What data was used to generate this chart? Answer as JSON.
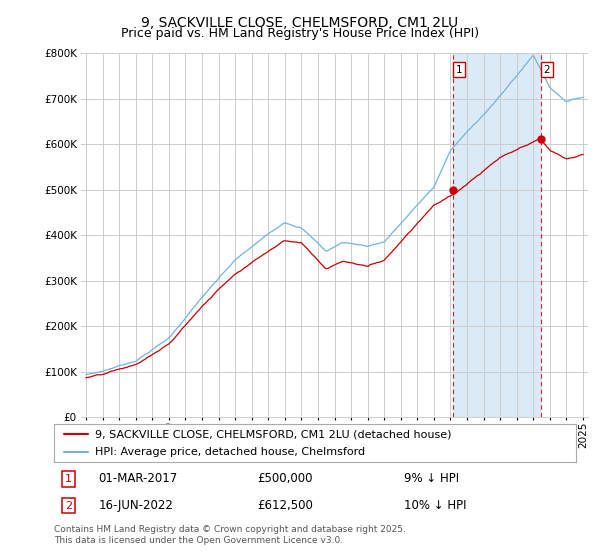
{
  "title": "9, SACKVILLE CLOSE, CHELMSFORD, CM1 2LU",
  "subtitle": "Price paid vs. HM Land Registry's House Price Index (HPI)",
  "legend_label_red": "9, SACKVILLE CLOSE, CHELMSFORD, CM1 2LU (detached house)",
  "legend_label_blue": "HPI: Average price, detached house, Chelmsford",
  "footer": "Contains HM Land Registry data © Crown copyright and database right 2025.\nThis data is licensed under the Open Government Licence v3.0.",
  "annotation1_label": "1",
  "annotation1_date": "01-MAR-2017",
  "annotation1_price": "£500,000",
  "annotation1_note": "9% ↓ HPI",
  "annotation2_label": "2",
  "annotation2_date": "16-JUN-2022",
  "annotation2_price": "£612,500",
  "annotation2_note": "10% ↓ HPI",
  "vline1_x": 2017.17,
  "vline2_x": 2022.46,
  "sale1_x": 2017.17,
  "sale1_y": 500000,
  "sale2_x": 2022.46,
  "sale2_y": 612500,
  "ylim": [
    0,
    800000
  ],
  "xlim": [
    1994.7,
    2025.3
  ],
  "red_color": "#cc0000",
  "blue_color": "#74b3e0",
  "shade_color": "#daeaf7",
  "vline_color": "#cc0000",
  "grid_color": "#cccccc",
  "background_color": "#ffffff",
  "title_fontsize": 10,
  "subtitle_fontsize": 9,
  "tick_fontsize": 7.5,
  "legend_fontsize": 8,
  "footer_fontsize": 6.5,
  "num_points": 360
}
